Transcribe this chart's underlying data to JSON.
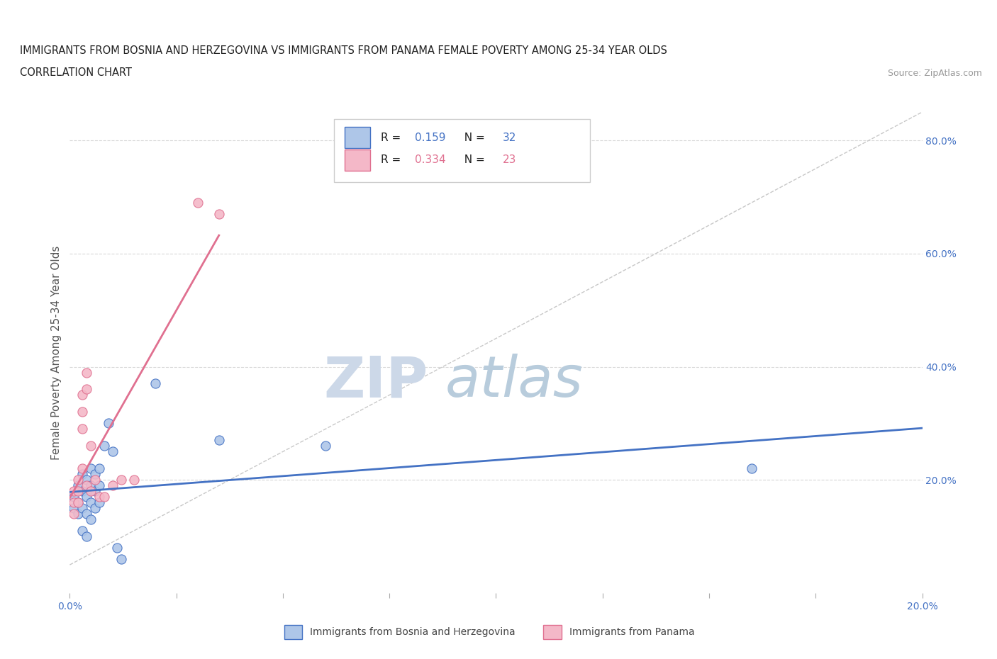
{
  "title_line1": "IMMIGRANTS FROM BOSNIA AND HERZEGOVINA VS IMMIGRANTS FROM PANAMA FEMALE POVERTY AMONG 25-34 YEAR OLDS",
  "title_line2": "CORRELATION CHART",
  "source_text": "Source: ZipAtlas.com",
  "ylabel": "Female Poverty Among 25-34 Year Olds",
  "xlim": [
    0.0,
    0.2
  ],
  "ylim": [
    0.0,
    0.85
  ],
  "xticks": [
    0.0,
    0.025,
    0.05,
    0.075,
    0.1,
    0.125,
    0.15,
    0.175,
    0.2
  ],
  "xtick_labels_show": {
    "0.0": "0.0%",
    "0.20": "20.0%"
  },
  "ytick_right_labels": [
    "20.0%",
    "40.0%",
    "60.0%",
    "80.0%"
  ],
  "ytick_right_values": [
    0.2,
    0.4,
    0.6,
    0.8
  ],
  "r_bosnia": 0.159,
  "n_bosnia": 32,
  "r_panama": 0.334,
  "n_panama": 23,
  "color_bosnia": "#aec6e8",
  "color_panama": "#f4b8c8",
  "color_bosnia_line": "#4472c4",
  "color_panama_line": "#e07090",
  "color_trend_dashed": "#c8c8c8",
  "watermark_zip": "ZIP",
  "watermark_atlas": "atlas",
  "watermark_color_zip": "#ccd8e8",
  "watermark_color_atlas": "#b8ccdc",
  "bosnia_x": [
    0.001,
    0.001,
    0.002,
    0.002,
    0.002,
    0.003,
    0.003,
    0.003,
    0.003,
    0.004,
    0.004,
    0.004,
    0.004,
    0.005,
    0.005,
    0.005,
    0.005,
    0.006,
    0.006,
    0.006,
    0.007,
    0.007,
    0.007,
    0.008,
    0.009,
    0.01,
    0.011,
    0.012,
    0.02,
    0.035,
    0.06,
    0.16
  ],
  "bosnia_y": [
    0.17,
    0.15,
    0.19,
    0.16,
    0.14,
    0.21,
    0.18,
    0.15,
    0.11,
    0.2,
    0.17,
    0.14,
    0.1,
    0.22,
    0.19,
    0.16,
    0.13,
    0.21,
    0.18,
    0.15,
    0.22,
    0.19,
    0.16,
    0.26,
    0.3,
    0.25,
    0.08,
    0.06,
    0.37,
    0.27,
    0.26,
    0.22
  ],
  "panama_x": [
    0.001,
    0.001,
    0.001,
    0.002,
    0.002,
    0.002,
    0.003,
    0.003,
    0.003,
    0.003,
    0.004,
    0.004,
    0.004,
    0.005,
    0.005,
    0.006,
    0.007,
    0.008,
    0.01,
    0.012,
    0.015,
    0.03,
    0.035
  ],
  "panama_y": [
    0.18,
    0.16,
    0.14,
    0.2,
    0.18,
    0.16,
    0.35,
    0.32,
    0.29,
    0.22,
    0.39,
    0.36,
    0.19,
    0.26,
    0.18,
    0.2,
    0.17,
    0.17,
    0.19,
    0.2,
    0.2,
    0.69,
    0.67
  ],
  "legend_label_bosnia": "Immigrants from Bosnia and Herzegovina",
  "legend_label_panama": "Immigrants from Panama",
  "background_color": "#ffffff",
  "grid_color": "#d8d8d8"
}
